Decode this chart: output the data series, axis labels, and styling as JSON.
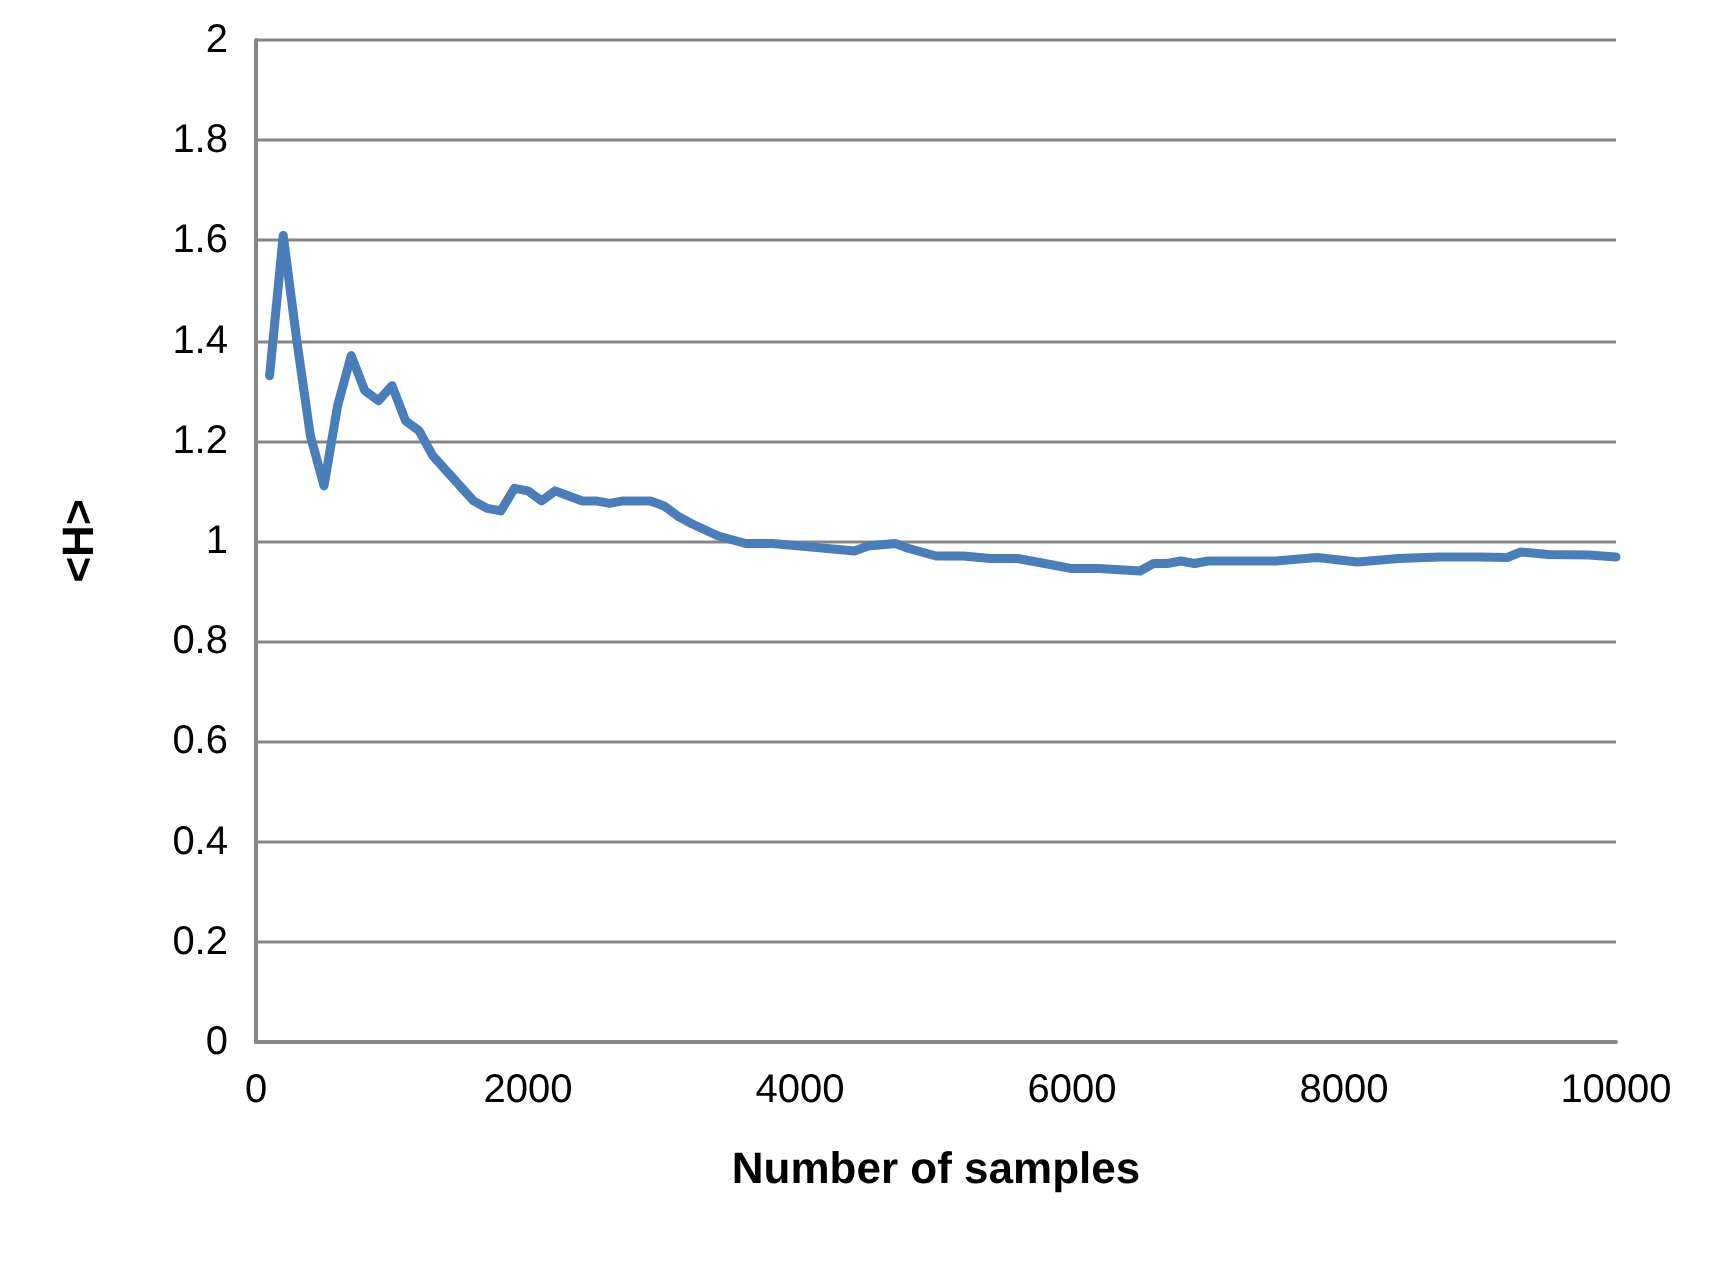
{
  "chart_data": {
    "type": "line",
    "xlabel": "Number of samples",
    "ylabel": "<H>",
    "x": [
      100,
      200,
      300,
      400,
      500,
      600,
      700,
      800,
      900,
      1000,
      1100,
      1200,
      1300,
      1400,
      1500,
      1600,
      1700,
      1800,
      1900,
      2000,
      2100,
      2200,
      2300,
      2400,
      2500,
      2600,
      2700,
      2800,
      2900,
      3000,
      3100,
      3200,
      3400,
      3600,
      3800,
      4000,
      4200,
      4400,
      4500,
      4700,
      4800,
      5000,
      5200,
      5400,
      5600,
      5800,
      6000,
      6200,
      6500,
      6600,
      6700,
      6800,
      6900,
      7000,
      7200,
      7500,
      7800,
      8100,
      8400,
      8700,
      9000,
      9200,
      9300,
      9500,
      9800,
      10000
    ],
    "series": [
      {
        "color": "#4a7ebb",
        "values": [
          1.33,
          1.61,
          1.4,
          1.21,
          1.11,
          1.27,
          1.37,
          1.3,
          1.28,
          1.31,
          1.24,
          1.22,
          1.17,
          1.14,
          1.11,
          1.08,
          1.065,
          1.06,
          1.105,
          1.1,
          1.08,
          1.1,
          1.09,
          1.08,
          1.08,
          1.075,
          1.08,
          1.08,
          1.08,
          1.07,
          1.05,
          1.035,
          1.01,
          0.995,
          0.995,
          0.99,
          0.985,
          0.98,
          0.99,
          0.995,
          0.985,
          0.97,
          0.97,
          0.965,
          0.965,
          0.955,
          0.945,
          0.945,
          0.94,
          0.955,
          0.955,
          0.96,
          0.955,
          0.96,
          0.96,
          0.96,
          0.967,
          0.958,
          0.965,
          0.968,
          0.968,
          0.967,
          0.978,
          0.973,
          0.972,
          0.968
        ]
      }
    ],
    "xlim": [
      0,
      10000
    ],
    "xticks": [
      0,
      2000,
      4000,
      6000,
      8000,
      10000
    ],
    "ylim": [
      0,
      2
    ],
    "yticks": [
      0,
      0.2,
      0.4,
      0.6,
      0.8,
      1,
      1.2,
      1.4,
      1.6,
      1.8,
      2
    ],
    "grid": "y",
    "marker": "none",
    "line_style": "solid"
  }
}
